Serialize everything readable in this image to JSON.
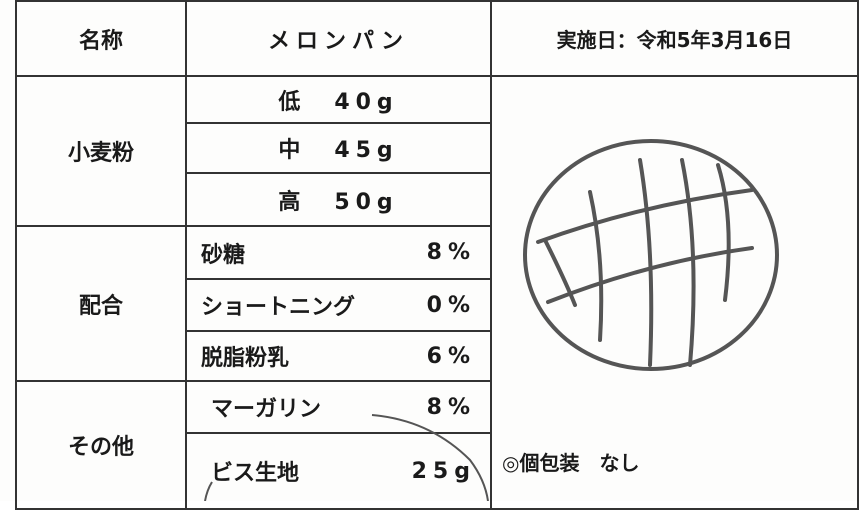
{
  "header": {
    "name_label": "名称",
    "name": "メロンパン",
    "date": "実施日：令和5年3月16日"
  },
  "flour": {
    "label": "小麦粉",
    "items": [
      "低　40g",
      "中　45g",
      "高　50g"
    ]
  },
  "mix": {
    "label": "配合",
    "items": [
      {
        "name": "砂糖",
        "value": "8%"
      },
      {
        "name": "ショートニング",
        "value": "0%"
      },
      {
        "name": "脱脂粉乳",
        "value": "6%"
      }
    ]
  },
  "other": {
    "label": "その他",
    "items": [
      {
        "name": "マーガリン",
        "value": "8%"
      },
      {
        "name": "ビス生地",
        "value": "25g"
      }
    ]
  },
  "note": "◎個包装　なし"
}
